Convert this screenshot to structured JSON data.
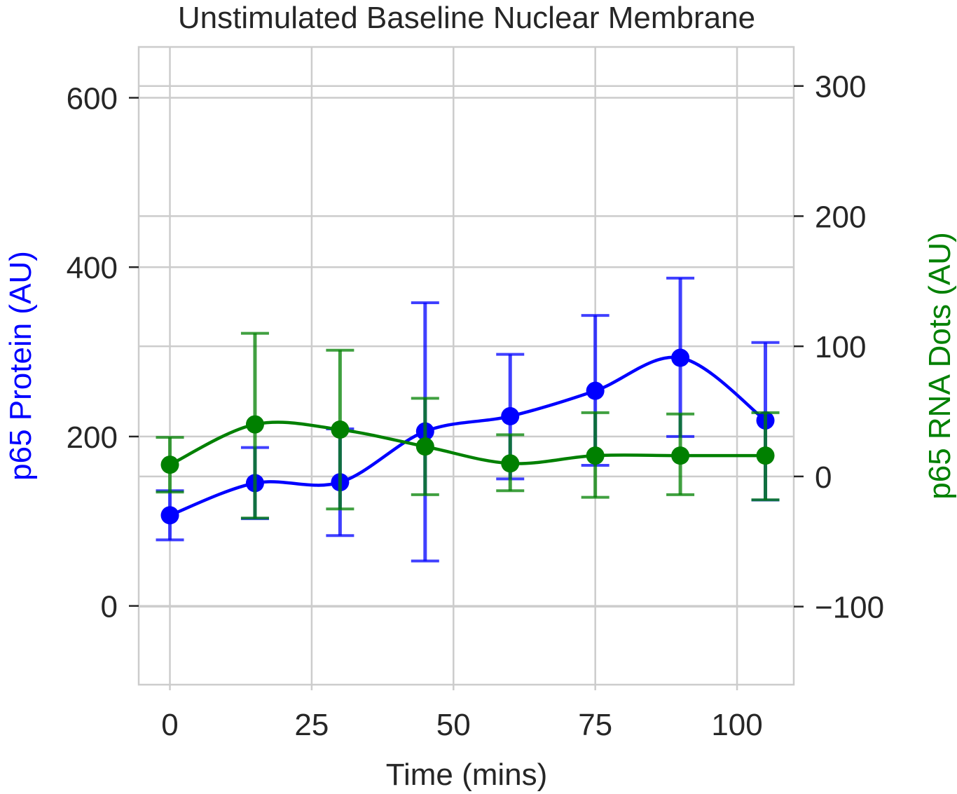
{
  "chart_data": {
    "type": "line",
    "title": "Unstimulated Baseline Nuclear Membrane",
    "xlabel": "Time (mins)",
    "ylabel_left": "p65 Protein (AU)",
    "ylabel_right": "p65 RNA Dots (AU)",
    "x": [
      0,
      15,
      30,
      45,
      60,
      75,
      90,
      105
    ],
    "xlim": [
      -5.5,
      110
    ],
    "ylim_left": [
      -93,
      660
    ],
    "ylim_right": [
      -160,
      330
    ],
    "xticks": [
      0,
      25,
      50,
      75,
      100
    ],
    "yticks_left": [
      0,
      200,
      400,
      600
    ],
    "yticks_right": [
      -100,
      0,
      100,
      200,
      300
    ],
    "x_tick_labels": [
      "0",
      "25",
      "50",
      "75",
      "100"
    ],
    "y_left_tick_labels": [
      "0",
      "200",
      "400",
      "600"
    ],
    "y_right_tick_labels": [
      "−100",
      "0",
      "100",
      "200",
      "300"
    ],
    "grid": true,
    "series": [
      {
        "name": "p65 Protein (AU)",
        "axis": "left",
        "color": "#0000ff",
        "values": [
          107,
          145,
          146,
          206,
          224,
          254,
          293,
          219
        ],
        "err_low": [
          78,
          103,
          83,
          53,
          150,
          166,
          200,
          125
        ],
        "err_high": [
          136,
          187,
          209,
          358,
          297,
          343,
          387,
          311
        ]
      },
      {
        "name": "p65 RNA Dots (AU)",
        "axis": "right",
        "color": "#008000",
        "values": [
          9,
          40,
          36,
          23,
          10,
          16,
          16,
          16
        ],
        "err_low": [
          -12,
          -32,
          -25,
          -14,
          -11,
          -16,
          -14,
          -18
        ],
        "err_high": [
          30,
          110,
          97,
          60,
          32,
          49,
          48,
          49
        ]
      }
    ]
  }
}
